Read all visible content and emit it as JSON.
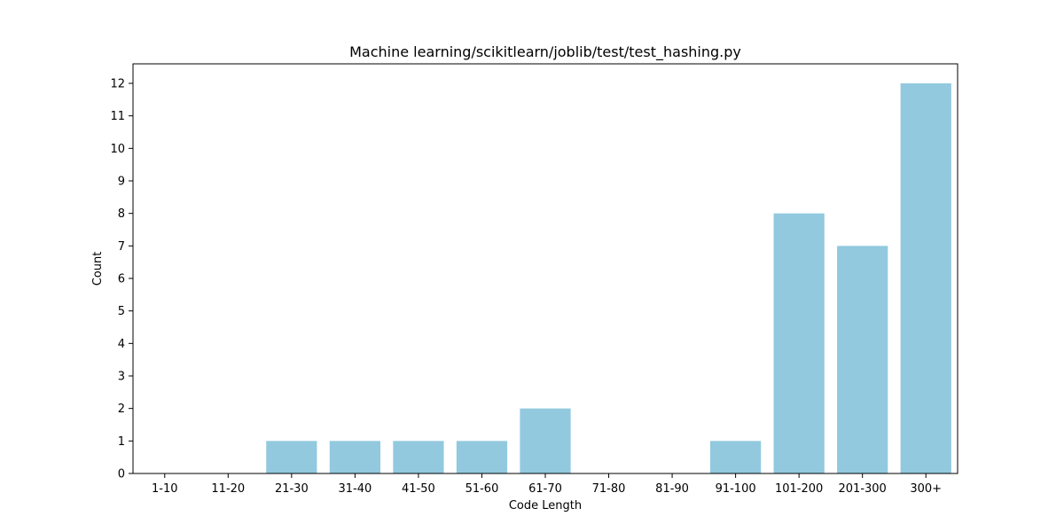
{
  "chart_data": {
    "type": "bar",
    "title": "Machine learning/scikitlearn/joblib/test/test_hashing.py",
    "xlabel": "Code Length",
    "ylabel": "Count",
    "categories": [
      "1-10",
      "11-20",
      "21-30",
      "31-40",
      "41-50",
      "51-60",
      "61-70",
      "71-80",
      "81-90",
      "91-100",
      "101-200",
      "201-300",
      "300+"
    ],
    "values": [
      0,
      0,
      1,
      1,
      1,
      1,
      2,
      0,
      0,
      1,
      8,
      7,
      12
    ],
    "ylim": [
      0,
      12.6
    ],
    "yticks": [
      0,
      1,
      2,
      3,
      4,
      5,
      6,
      7,
      8,
      9,
      10,
      11,
      12
    ],
    "grid": false,
    "legend": "none",
    "bar_color": "#92c9df"
  }
}
